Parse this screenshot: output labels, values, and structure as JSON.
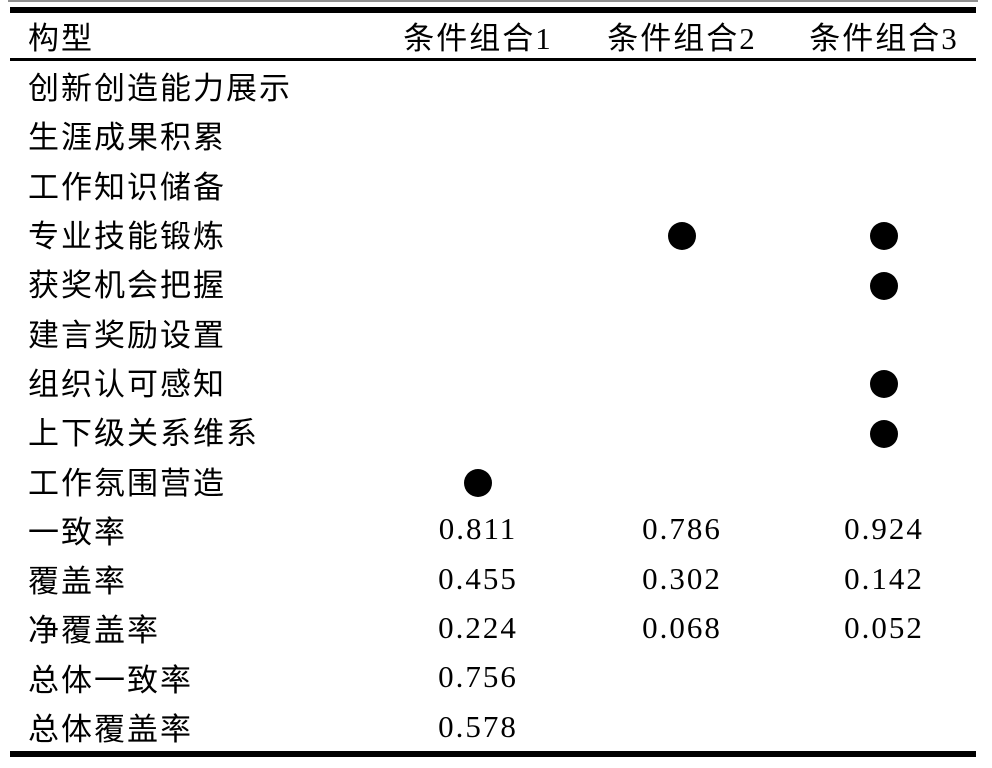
{
  "colors": {
    "background": "#ffffff",
    "text": "#000000",
    "rule": "#000000",
    "marker": "#000000"
  },
  "chart_data": {
    "type": "table",
    "title": "",
    "marker_glyph": "●",
    "columns": [
      "构型",
      "条件组合1",
      "条件组合2",
      "条件组合3"
    ],
    "rows": [
      {
        "label": "创新创造能力展示",
        "values": [
          "",
          "",
          ""
        ]
      },
      {
        "label": "生涯成果积累",
        "values": [
          "",
          "",
          ""
        ]
      },
      {
        "label": "工作知识储备",
        "values": [
          "",
          "",
          ""
        ]
      },
      {
        "label": "专业技能锻炼",
        "values": [
          "",
          "●",
          "●"
        ]
      },
      {
        "label": "获奖机会把握",
        "values": [
          "",
          "",
          "●"
        ]
      },
      {
        "label": "建言奖励设置",
        "values": [
          "",
          "",
          ""
        ]
      },
      {
        "label": "组织认可感知",
        "values": [
          "",
          "",
          "●"
        ]
      },
      {
        "label": "上下级关系维系",
        "values": [
          "",
          "",
          "●"
        ]
      },
      {
        "label": "工作氛围营造",
        "values": [
          "●",
          "",
          ""
        ]
      },
      {
        "label": "一致率",
        "values": [
          "0.811",
          "0.786",
          "0.924"
        ]
      },
      {
        "label": "覆盖率",
        "values": [
          "0.455",
          "0.302",
          "0.142"
        ]
      },
      {
        "label": "净覆盖率",
        "values": [
          "0.224",
          "0.068",
          "0.052"
        ]
      },
      {
        "label": "总体一致率",
        "values": [
          "0.756",
          "",
          ""
        ]
      },
      {
        "label": "总体覆盖率",
        "values": [
          "0.578",
          "",
          ""
        ]
      }
    ]
  }
}
